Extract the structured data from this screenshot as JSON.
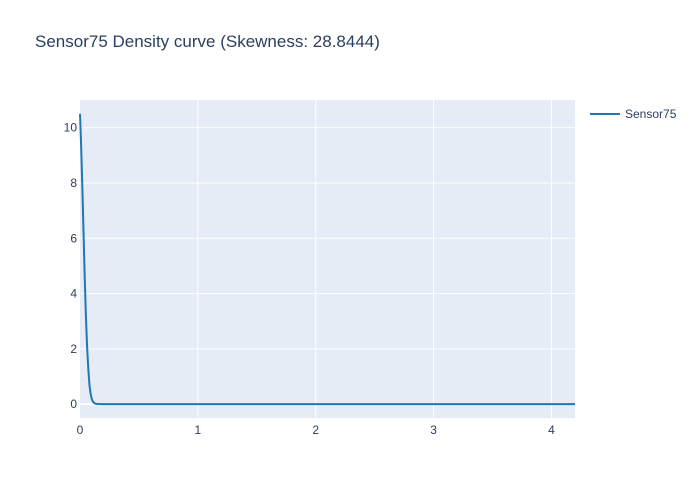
{
  "chart_data": {
    "type": "line",
    "title": "Sensor75 Density curve (Skewness: 28.8444)",
    "xlabel": "",
    "ylabel": "",
    "xlim": [
      0,
      4.2
    ],
    "ylim": [
      -0.5,
      11
    ],
    "x_ticks": [
      0,
      1,
      2,
      3,
      4
    ],
    "y_ticks": [
      0,
      2,
      4,
      6,
      8,
      10
    ],
    "grid": true,
    "legend_position": "top-right",
    "series": [
      {
        "name": "Sensor75",
        "color": "#1f77b4",
        "x": [
          0,
          0.01,
          0.02,
          0.03,
          0.04,
          0.05,
          0.06,
          0.07,
          0.08,
          0.09,
          0.1,
          0.11,
          0.12,
          0.13,
          0.14,
          0.16,
          0.2,
          0.3,
          0.5,
          1.0,
          2.0,
          3.0,
          4.0,
          4.2
        ],
        "y": [
          10.5,
          9.3,
          7.8,
          6.2,
          4.6,
          3.2,
          2.1,
          1.3,
          0.7,
          0.38,
          0.18,
          0.09,
          0.04,
          0.02,
          0.01,
          0.005,
          0.002,
          0.001,
          0.0005,
          0.0002,
          0.0001,
          0.0001,
          0.0001,
          0.0001
        ]
      }
    ]
  }
}
